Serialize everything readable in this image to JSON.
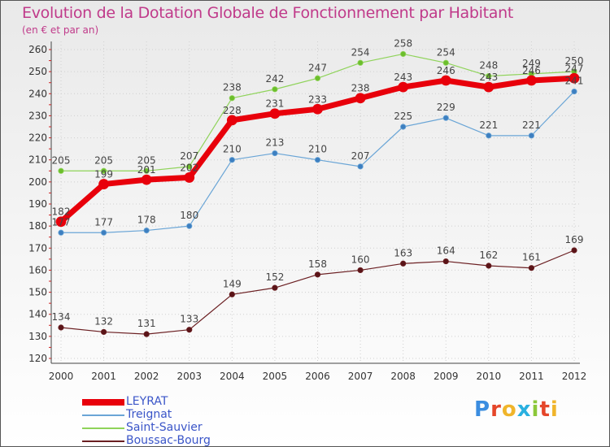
{
  "header": {
    "title": "Evolution de la Dotation Globale de Fonctionnement par Habitant",
    "subtitle": "(en € et par an)"
  },
  "brand": {
    "logo_text": "Proxiti",
    "logo_colors": [
      "#3b8de0",
      "#e5462a",
      "#f0b52b",
      "#2ab0e0",
      "#8cc83a",
      "#e5462a",
      "#f0b52b"
    ]
  },
  "chart_data": {
    "type": "line",
    "x": [
      "2000",
      "2001",
      "2002",
      "2003",
      "2004",
      "2005",
      "2006",
      "2007",
      "2008",
      "2009",
      "2010",
      "2011",
      "2012"
    ],
    "ylim": [
      120,
      260
    ],
    "yticks": [
      120,
      130,
      140,
      150,
      160,
      170,
      180,
      190,
      200,
      210,
      220,
      230,
      240,
      250,
      260
    ],
    "grid": true,
    "legend_position": "bottom-left",
    "series": [
      {
        "name": "LEYRAT",
        "color": "#e8000b",
        "values": [
          182,
          199,
          201,
          202,
          228,
          231,
          233,
          238,
          243,
          246,
          243,
          246,
          247
        ]
      },
      {
        "name": "Treignat",
        "color": "#6aa5d6",
        "values": [
          177,
          177,
          178,
          180,
          210,
          213,
          210,
          207,
          225,
          229,
          221,
          221,
          241
        ]
      },
      {
        "name": "Saint-Sauvier",
        "color": "#8fd35a",
        "values": [
          205,
          205,
          205,
          207,
          238,
          242,
          247,
          254,
          258,
          254,
          248,
          249,
          250
        ]
      },
      {
        "name": "Boussac-Bourg",
        "color": "#6b1f22",
        "values": [
          134,
          132,
          131,
          133,
          149,
          152,
          158,
          160,
          163,
          164,
          162,
          161,
          169
        ]
      }
    ]
  }
}
